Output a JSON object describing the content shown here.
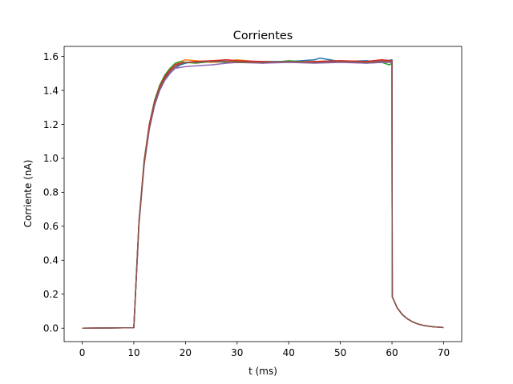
{
  "chart_data": {
    "type": "line",
    "title": "Corrientes",
    "xlabel": "t (ms)",
    "ylabel": "Corriente (nA)",
    "xlim": [
      -3.5,
      73.5
    ],
    "ylim": [
      -0.079,
      1.659
    ],
    "xticks": [
      0,
      10,
      20,
      30,
      40,
      50,
      60,
      70
    ],
    "yticks": [
      0.0,
      0.2,
      0.4,
      0.6,
      0.8,
      1.0,
      1.2,
      1.4,
      1.6
    ],
    "xtick_labels": [
      "0",
      "10",
      "20",
      "30",
      "40",
      "50",
      "60",
      "70"
    ],
    "ytick_labels": [
      "0.0",
      "0.2",
      "0.4",
      "0.6",
      "0.8",
      "1.0",
      "1.2",
      "1.4",
      "1.6"
    ],
    "grid": false,
    "legend": "none",
    "series": [
      {
        "color": "#1f77b4",
        "x": [
          0,
          10,
          11,
          12,
          13,
          14,
          15,
          16,
          17,
          18,
          19,
          20,
          22,
          25,
          28,
          30,
          35,
          40,
          45,
          46,
          50,
          55,
          57,
          59,
          60,
          60.05,
          61,
          62,
          63,
          64,
          65,
          66,
          67,
          68,
          70
        ],
        "y": [
          0,
          0.003,
          0.62,
          0.97,
          1.18,
          1.31,
          1.4,
          1.46,
          1.5,
          1.53,
          1.55,
          1.56,
          1.57,
          1.57,
          1.58,
          1.57,
          1.57,
          1.57,
          1.58,
          1.59,
          1.57,
          1.575,
          1.57,
          1.575,
          1.58,
          0.185,
          0.12,
          0.08,
          0.055,
          0.037,
          0.025,
          0.017,
          0.012,
          0.008,
          0.004
        ]
      },
      {
        "color": "#ff7f0e",
        "x": [
          0,
          10,
          11,
          12,
          13,
          14,
          15,
          16,
          17,
          18,
          19,
          20,
          22,
          25,
          28,
          30,
          35,
          40,
          45,
          50,
          55,
          58,
          60,
          60.05,
          61,
          62,
          63,
          64,
          65,
          66,
          67,
          68,
          70
        ],
        "y": [
          0,
          0.003,
          0.62,
          0.98,
          1.19,
          1.33,
          1.42,
          1.48,
          1.52,
          1.55,
          1.57,
          1.58,
          1.575,
          1.565,
          1.57,
          1.58,
          1.565,
          1.57,
          1.57,
          1.575,
          1.57,
          1.58,
          1.57,
          0.185,
          0.12,
          0.08,
          0.055,
          0.037,
          0.025,
          0.017,
          0.012,
          0.008,
          0.004
        ]
      },
      {
        "color": "#2ca02c",
        "x": [
          0,
          10,
          11,
          12,
          13,
          14,
          15,
          16,
          17,
          18,
          19,
          20,
          22,
          25,
          28,
          30,
          35,
          40,
          45,
          50,
          55,
          58,
          59.5,
          60,
          60.05,
          61,
          62,
          63,
          64,
          65,
          66,
          67,
          68,
          70
        ],
        "y": [
          0,
          0.003,
          0.63,
          0.99,
          1.2,
          1.34,
          1.43,
          1.49,
          1.53,
          1.56,
          1.57,
          1.565,
          1.56,
          1.57,
          1.565,
          1.57,
          1.56,
          1.575,
          1.565,
          1.57,
          1.56,
          1.565,
          1.55,
          1.56,
          0.185,
          0.12,
          0.08,
          0.055,
          0.037,
          0.025,
          0.017,
          0.012,
          0.008,
          0.004
        ]
      },
      {
        "color": "#d62728",
        "x": [
          0,
          10,
          11,
          12,
          13,
          14,
          15,
          16,
          17,
          18,
          19,
          20,
          22,
          25,
          28,
          30,
          35,
          40,
          45,
          50,
          55,
          58,
          60,
          60.05,
          61,
          62,
          63,
          64,
          65,
          66,
          67,
          68,
          70
        ],
        "y": [
          0,
          0.003,
          0.63,
          0.98,
          1.2,
          1.33,
          1.42,
          1.48,
          1.52,
          1.55,
          1.56,
          1.565,
          1.57,
          1.575,
          1.58,
          1.575,
          1.57,
          1.565,
          1.57,
          1.575,
          1.57,
          1.58,
          1.575,
          0.185,
          0.12,
          0.08,
          0.055,
          0.037,
          0.025,
          0.017,
          0.012,
          0.008,
          0.004
        ]
      },
      {
        "color": "#9467bd",
        "x": [
          0,
          10,
          11,
          12,
          13,
          14,
          15,
          16,
          17,
          18,
          19,
          20,
          22,
          25,
          28,
          30,
          35,
          40,
          45,
          50,
          55,
          58,
          60,
          60.05,
          61,
          62,
          63,
          64,
          65,
          66,
          67,
          68,
          70
        ],
        "y": [
          0,
          0.003,
          0.61,
          0.96,
          1.17,
          1.31,
          1.4,
          1.46,
          1.5,
          1.53,
          1.535,
          1.54,
          1.545,
          1.55,
          1.56,
          1.565,
          1.56,
          1.565,
          1.56,
          1.565,
          1.56,
          1.565,
          1.565,
          0.185,
          0.12,
          0.08,
          0.055,
          0.037,
          0.025,
          0.017,
          0.012,
          0.008,
          0.004
        ]
      },
      {
        "color": "#8c564b",
        "x": [
          0,
          10,
          11,
          12,
          13,
          14,
          15,
          16,
          17,
          18,
          19,
          20,
          22,
          25,
          28,
          30,
          35,
          40,
          45,
          50,
          55,
          58,
          60,
          60.05,
          61,
          62,
          63,
          64,
          65,
          66,
          67,
          68,
          70
        ],
        "y": [
          0,
          0.003,
          0.62,
          0.97,
          1.18,
          1.32,
          1.41,
          1.47,
          1.51,
          1.54,
          1.555,
          1.565,
          1.565,
          1.57,
          1.57,
          1.565,
          1.565,
          1.57,
          1.565,
          1.57,
          1.565,
          1.57,
          1.57,
          0.185,
          0.12,
          0.08,
          0.055,
          0.037,
          0.025,
          0.017,
          0.012,
          0.008,
          0.004
        ]
      }
    ]
  }
}
